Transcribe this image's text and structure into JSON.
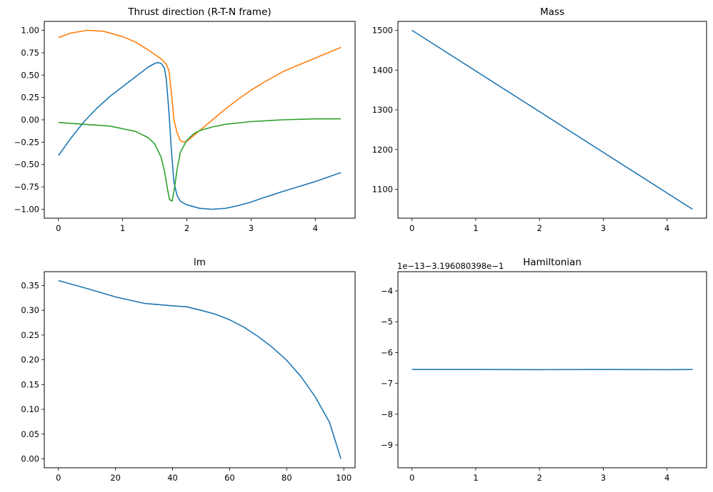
{
  "chart_data": [
    {
      "type": "line",
      "title": "Thrust direction (R-T-N frame)",
      "xlim": [
        -0.22,
        4.62
      ],
      "ylim": [
        -1.1,
        1.1
      ],
      "xticks": [
        "0",
        "1",
        "2",
        "3",
        "4"
      ],
      "yticks": [
        "1.00",
        "0.75",
        "0.50",
        "0.25",
        "0.00",
        "−0.25",
        "−0.50",
        "−0.75",
        "−1.00"
      ],
      "grid": false,
      "series": [
        {
          "color": "#1f77b4",
          "x": [
            0,
            0.2,
            0.4,
            0.6,
            0.8,
            1.0,
            1.2,
            1.4,
            1.5,
            1.55,
            1.6,
            1.65,
            1.68,
            1.72,
            1.76,
            1.8,
            1.85,
            1.9,
            2.0,
            2.2,
            2.4,
            2.6,
            2.8,
            3.0,
            3.2,
            3.5,
            4.0,
            4.4
          ],
          "y": [
            -0.4,
            -0.2,
            -0.02,
            0.13,
            0.26,
            0.37,
            0.48,
            0.59,
            0.63,
            0.64,
            0.63,
            0.58,
            0.45,
            0.1,
            -0.35,
            -0.7,
            -0.85,
            -0.91,
            -0.95,
            -0.99,
            -1.0,
            -0.99,
            -0.96,
            -0.92,
            -0.87,
            -0.8,
            -0.69,
            -0.59
          ]
        },
        {
          "color": "#ff7f0e",
          "x": [
            0,
            0.2,
            0.45,
            0.7,
            1.0,
            1.2,
            1.4,
            1.6,
            1.68,
            1.72,
            1.76,
            1.8,
            1.85,
            1.9,
            1.95,
            2.0,
            2.2,
            2.4,
            2.6,
            2.8,
            3.0,
            3.2,
            3.5,
            4.0,
            4.4
          ],
          "y": [
            0.92,
            0.97,
            1.0,
            0.99,
            0.93,
            0.87,
            0.78,
            0.68,
            0.62,
            0.55,
            0.3,
            0.0,
            -0.15,
            -0.23,
            -0.25,
            -0.24,
            -0.12,
            0.0,
            0.12,
            0.23,
            0.33,
            0.42,
            0.54,
            0.69,
            0.81
          ]
        },
        {
          "color": "#2ca02c",
          "x": [
            0,
            0.4,
            0.8,
            1.0,
            1.2,
            1.4,
            1.5,
            1.6,
            1.65,
            1.7,
            1.73,
            1.77,
            1.8,
            1.85,
            1.9,
            2.0,
            2.1,
            2.2,
            2.4,
            2.6,
            3.0,
            3.5,
            4.0,
            4.4
          ],
          "y": [
            -0.03,
            -0.05,
            -0.07,
            -0.1,
            -0.13,
            -0.2,
            -0.27,
            -0.42,
            -0.57,
            -0.78,
            -0.89,
            -0.91,
            -0.8,
            -0.55,
            -0.36,
            -0.23,
            -0.16,
            -0.12,
            -0.08,
            -0.05,
            -0.02,
            0.0,
            0.01,
            0.01
          ]
        }
      ]
    },
    {
      "type": "line",
      "title": "Mass",
      "xlim": [
        -0.22,
        4.62
      ],
      "ylim": [
        1027.5,
        1522.5
      ],
      "xticks": [
        "0",
        "1",
        "2",
        "3",
        "4"
      ],
      "yticks": [
        "1500",
        "1400",
        "1300",
        "1200",
        "1100"
      ],
      "grid": false,
      "series": [
        {
          "color": "#1f77b4",
          "x": [
            0,
            4.4
          ],
          "y": [
            1500,
            1050
          ]
        }
      ]
    },
    {
      "type": "line",
      "title": "lm",
      "xlim": [
        -4.95,
        103.95
      ],
      "ylim": [
        -0.018,
        0.378
      ],
      "xticks": [
        "0",
        "20",
        "40",
        "60",
        "80",
        "100"
      ],
      "yticks": [
        "0.35",
        "0.30",
        "0.25",
        "0.20",
        "0.15",
        "0.10",
        "0.05",
        "0.00"
      ],
      "grid": false,
      "series": [
        {
          "color": "#1f77b4",
          "x": [
            0,
            10,
            20,
            30,
            40,
            45,
            50,
            55,
            60,
            65,
            70,
            75,
            80,
            85,
            90,
            95,
            99
          ],
          "y": [
            0.36,
            0.344,
            0.327,
            0.314,
            0.309,
            0.307,
            0.3,
            0.292,
            0.281,
            0.266,
            0.247,
            0.225,
            0.199,
            0.166,
            0.125,
            0.074,
            0.0
          ]
        }
      ]
    },
    {
      "type": "line",
      "title": "Hamiltonian",
      "offset_text": "1e−13−3.196080398e−1",
      "xlim": [
        -0.22,
        4.62
      ],
      "ylim": [
        -9.74,
        -3.375
      ],
      "xticks": [
        "0",
        "1",
        "2",
        "3",
        "4"
      ],
      "yticks": [
        "−4",
        "−5",
        "−6",
        "−7",
        "−8",
        "−9"
      ],
      "grid": false,
      "series": [
        {
          "color": "#1f77b4",
          "x": [
            0,
            1,
            2,
            3,
            4,
            4.4
          ],
          "y": [
            -6.55,
            -6.55,
            -6.555,
            -6.55,
            -6.555,
            -6.55
          ]
        }
      ]
    }
  ]
}
